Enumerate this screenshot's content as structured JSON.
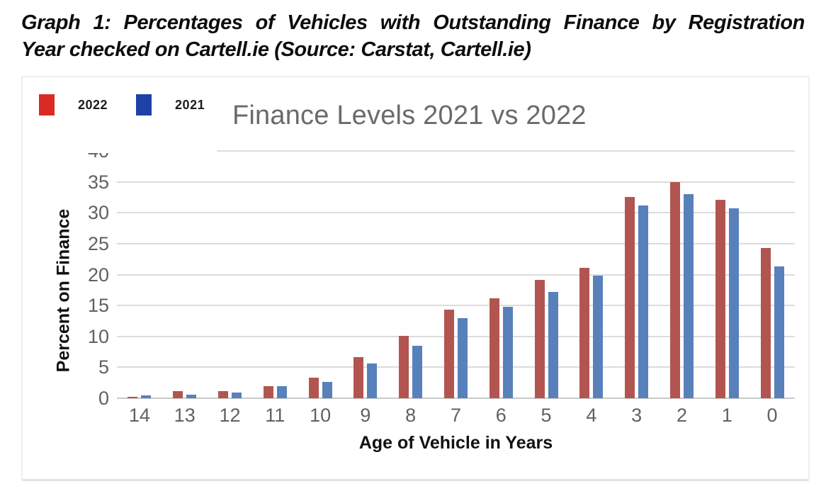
{
  "heading": {
    "line1": "Graph 1: Percentages of Vehicles with Outstanding Finance by Registration",
    "line2": "Year checked on Cartell.ie (Source: Carstat, Cartell.ie)"
  },
  "chart_data": {
    "type": "bar",
    "title": "Finance Levels 2021 vs 2022",
    "xlabel": "Age of Vehicle in Years",
    "ylabel": "Percent on Finance",
    "categories": [
      "14",
      "13",
      "12",
      "11",
      "10",
      "9",
      "8",
      "7",
      "6",
      "5",
      "4",
      "3",
      "2",
      "1",
      "0"
    ],
    "series": [
      {
        "name": "2022",
        "bar_color": "#b25551",
        "legend_color": "#d92b22",
        "values": [
          0.2,
          1.1,
          1.1,
          2.0,
          3.3,
          6.6,
          10.1,
          14.3,
          16.2,
          19.2,
          21.1,
          32.5,
          35.0,
          32.1,
          24.3
        ]
      },
      {
        "name": "2021",
        "bar_color": "#5880bb",
        "legend_color": "#1e41a6",
        "values": [
          0.5,
          0.6,
          0.9,
          1.9,
          2.6,
          5.6,
          8.5,
          13.0,
          14.8,
          17.2,
          19.8,
          31.2,
          33.0,
          30.7,
          21.3
        ]
      }
    ],
    "ylim": [
      0,
      40
    ],
    "ytick_step": 5,
    "grid": true,
    "legend_position": "top-left"
  }
}
